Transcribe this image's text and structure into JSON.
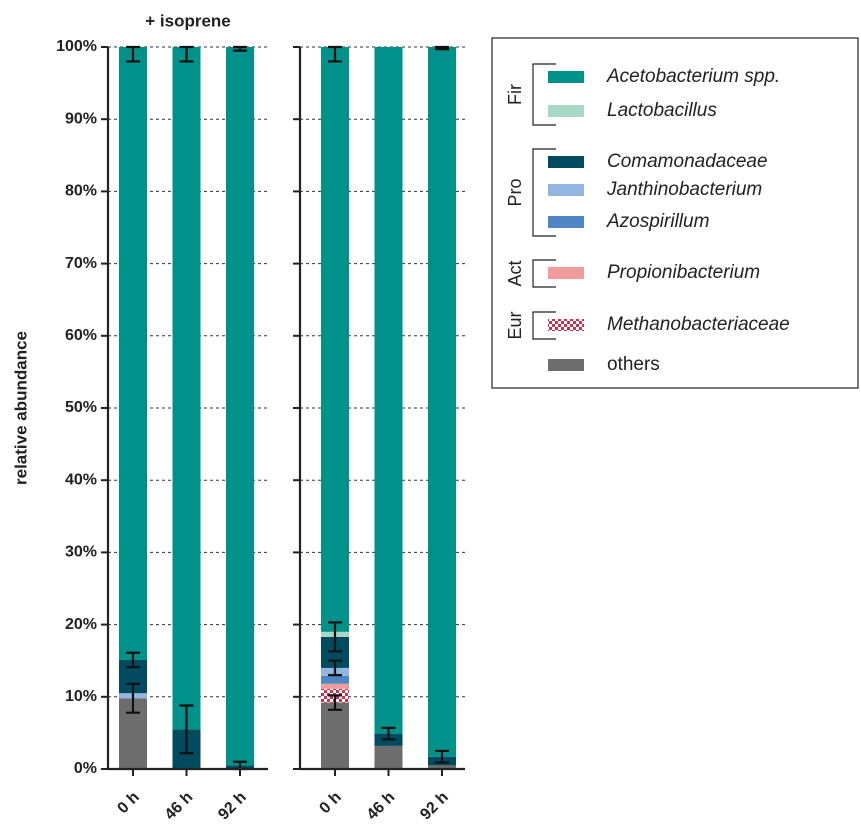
{
  "chart_data": {
    "type": "stacked_bar",
    "ylabel": "relative abundance",
    "ylim": [
      0,
      100
    ],
    "yticks": [
      {
        "value": 0,
        "label": "0%"
      },
      {
        "value": 10,
        "label": "10%"
      },
      {
        "value": 20,
        "label": "20%"
      },
      {
        "value": 30,
        "label": "30%"
      },
      {
        "value": 40,
        "label": "40%"
      },
      {
        "value": 50,
        "label": "50%"
      },
      {
        "value": 60,
        "label": "60%"
      },
      {
        "value": 70,
        "label": "70%"
      },
      {
        "value": 80,
        "label": "80%"
      },
      {
        "value": 90,
        "label": "90%"
      },
      {
        "value": 100,
        "label": "100%"
      }
    ],
    "grid": true,
    "panels": [
      {
        "title": "+ isoprene",
        "categories": [
          "0 h",
          "46 h",
          "92 h"
        ]
      },
      {
        "categories": [
          "0 h",
          "46 h",
          "92 h"
        ]
      }
    ],
    "series": [
      {
        "name": "Acetobacterium spp.",
        "group": "Fir",
        "color": "#00918a",
        "values": [
          [
            84.9,
            94.5,
            99.5
          ],
          [
            81.0,
            95.1,
            98.3
          ]
        ],
        "errors": [
          [
            2,
            2,
            0.5
          ],
          [
            2,
            null,
            0.3
          ]
        ]
      },
      {
        "name": "Lactobacillus",
        "group": "Fir",
        "color": "#a8d8c6",
        "values": [
          [
            0,
            0,
            0
          ],
          [
            0.7,
            0,
            0
          ]
        ],
        "errors": [
          [
            null,
            null,
            null
          ],
          [
            null,
            null,
            null
          ]
        ]
      },
      {
        "name": "Comamonadaceae",
        "group": "Pro",
        "color": "#004b60",
        "values": [
          [
            4.6,
            5.5,
            0.5
          ],
          [
            4.3,
            1.7,
            1.2
          ]
        ],
        "errors": [
          [
            1,
            3.3,
            0.5
          ],
          [
            2,
            0.8,
            0.8
          ]
        ]
      },
      {
        "name": "Janthinobacterium",
        "group": "Pro",
        "color": "#93b5e1",
        "values": [
          [
            0.7,
            0,
            0
          ],
          [
            1.1,
            0,
            0
          ]
        ],
        "errors": [
          [
            null,
            null,
            null
          ],
          [
            1,
            null,
            null
          ]
        ]
      },
      {
        "name": "Azospirillum",
        "group": "Pro",
        "color": "#4f86c6",
        "values": [
          [
            0,
            0,
            0
          ],
          [
            1.1,
            0,
            0
          ]
        ],
        "errors": [
          [
            null,
            null,
            null
          ],
          [
            null,
            null,
            null
          ]
        ]
      },
      {
        "name": "Propionibacterium",
        "group": "Act",
        "color": "#f09c9c",
        "values": [
          [
            0,
            0,
            0
          ],
          [
            0.7,
            0,
            0
          ]
        ],
        "errors": [
          [
            null,
            null,
            null
          ],
          [
            null,
            null,
            null
          ]
        ]
      },
      {
        "name": "Methanobacteriaceae",
        "group": "Eur",
        "color": "#d0304a",
        "pattern": "checker",
        "values": [
          [
            0,
            0,
            0
          ],
          [
            1.9,
            0,
            0
          ]
        ],
        "errors": [
          [
            null,
            null,
            null
          ],
          [
            null,
            null,
            null
          ]
        ]
      },
      {
        "name": "others",
        "color": "#6d6d6d",
        "values": [
          [
            9.8,
            0,
            0
          ],
          [
            9.2,
            3.2,
            0.5
          ]
        ],
        "errors": [
          [
            2,
            null,
            null
          ],
          [
            1,
            null,
            null
          ]
        ]
      }
    ]
  }
}
